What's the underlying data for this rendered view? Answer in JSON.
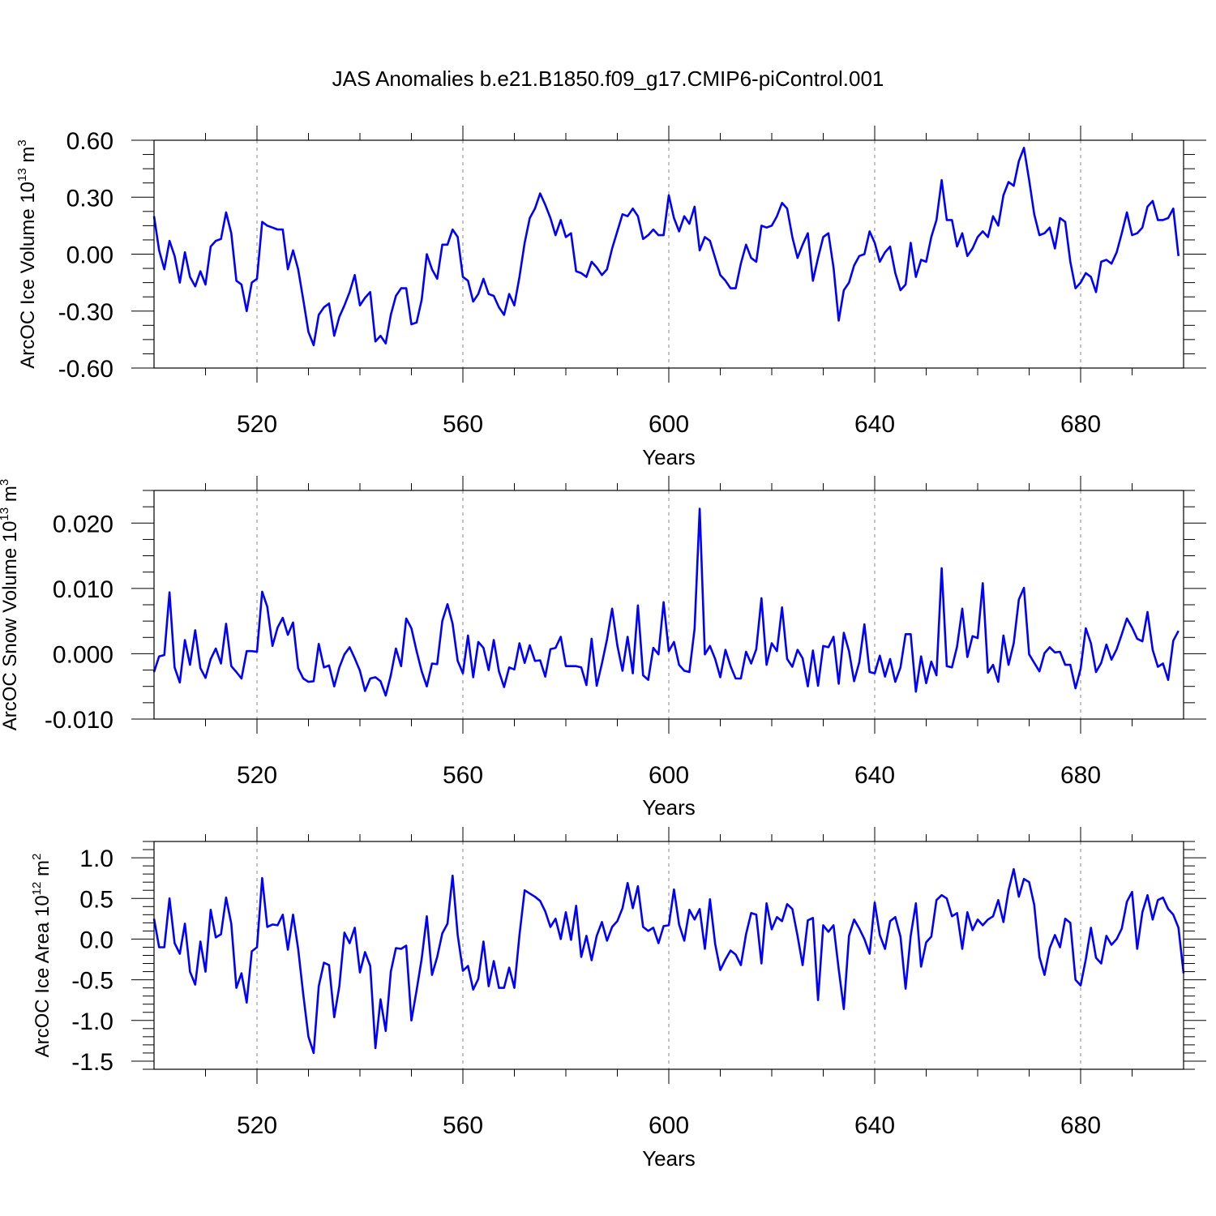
{
  "title": "JAS Anomalies b.e21.B1850.f09_g17.CMIP6-piControl.001",
  "colors": {
    "line": "#0000ff",
    "axes": "#000000",
    "grid": "#888888"
  },
  "chart_data": [
    {
      "type": "line",
      "name": "ice-volume",
      "title": "JAS Anomalies b.e21.B1850.f09_g17.CMIP6-piControl.001",
      "xlabel": "Years",
      "ylabel": {
        "main": "ArcOC Ice Volume 10",
        "exp": "13",
        "unit": " m",
        "unit_exp": "3"
      },
      "xlim": [
        500,
        700
      ],
      "ylim": [
        -0.6,
        0.6
      ],
      "xticks": [
        520,
        560,
        600,
        640,
        680
      ],
      "xtick_labels": [
        "520",
        "560",
        "600",
        "640",
        "680"
      ],
      "yticks": [
        -0.6,
        -0.3,
        0.0,
        0.3,
        0.6
      ],
      "ytick_labels": [
        "-0.60",
        "-0.30",
        "0.00",
        "0.30",
        "0.60"
      ],
      "y_minor_step": 0.075,
      "x_start": 500,
      "x_step": 1,
      "values": [
        0.2,
        0.02,
        -0.08,
        0.07,
        -0.01,
        -0.15,
        0.01,
        -0.12,
        -0.17,
        -0.09,
        -0.16,
        0.04,
        0.07,
        0.08,
        0.22,
        0.11,
        -0.14,
        -0.16,
        -0.3,
        -0.15,
        -0.13,
        0.17,
        0.15,
        0.14,
        0.13,
        0.13,
        -0.08,
        0.02,
        -0.08,
        -0.24,
        -0.41,
        -0.48,
        -0.32,
        -0.28,
        -0.26,
        -0.43,
        -0.33,
        -0.27,
        -0.2,
        -0.11,
        -0.27,
        -0.23,
        -0.2,
        -0.46,
        -0.43,
        -0.47,
        -0.32,
        -0.22,
        -0.18,
        -0.18,
        -0.37,
        -0.36,
        -0.24,
        0.0,
        -0.08,
        -0.13,
        0.05,
        0.05,
        0.13,
        0.09,
        -0.12,
        -0.14,
        -0.25,
        -0.21,
        -0.13,
        -0.21,
        -0.22,
        -0.28,
        -0.32,
        -0.21,
        -0.27,
        -0.12,
        0.06,
        0.19,
        0.24,
        0.32,
        0.26,
        0.19,
        0.1,
        0.18,
        0.09,
        0.11,
        -0.09,
        -0.1,
        -0.12,
        -0.04,
        -0.07,
        -0.11,
        -0.08,
        0.03,
        0.12,
        0.21,
        0.2,
        0.24,
        0.2,
        0.08,
        0.1,
        0.13,
        0.1,
        0.1,
        0.31,
        0.19,
        0.12,
        0.2,
        0.16,
        0.25,
        0.02,
        0.09,
        0.07,
        -0.02,
        -0.11,
        -0.14,
        -0.18,
        -0.18,
        -0.05,
        0.05,
        -0.02,
        -0.04,
        0.15,
        0.14,
        0.15,
        0.2,
        0.27,
        0.24,
        0.09,
        -0.02,
        0.05,
        0.11,
        -0.14,
        -0.02,
        0.09,
        0.11,
        -0.07,
        -0.35,
        -0.19,
        -0.15,
        -0.06,
        -0.01,
        0.0,
        0.12,
        0.06,
        -0.04,
        0.01,
        0.04,
        -0.1,
        -0.19,
        -0.16,
        0.06,
        -0.12,
        -0.03,
        -0.04,
        0.09,
        0.18,
        0.39,
        0.18,
        0.18,
        0.04,
        0.11,
        -0.01,
        0.03,
        0.09,
        0.12,
        0.09,
        0.2,
        0.15,
        0.31,
        0.38,
        0.36,
        0.49,
        0.56,
        0.39,
        0.21,
        0.1,
        0.11,
        0.14,
        0.03,
        0.19,
        0.17,
        -0.04,
        -0.18,
        -0.15,
        -0.1,
        -0.12,
        -0.2,
        -0.04,
        -0.03,
        -0.05,
        0.01,
        0.11,
        0.22,
        0.1,
        0.11,
        0.14,
        0.25,
        0.28,
        0.18,
        0.18,
        0.19,
        0.24,
        -0.01
      ]
    },
    {
      "type": "line",
      "name": "snow-volume",
      "xlabel": "Years",
      "ylabel": {
        "main": "ArcOC Snow Volume 10",
        "exp": "13",
        "unit": " m",
        "unit_exp": "3"
      },
      "xlim": [
        500,
        700
      ],
      "ylim": [
        -0.01,
        0.025
      ],
      "xticks": [
        520,
        560,
        600,
        640,
        680
      ],
      "xtick_labels": [
        "520",
        "560",
        "600",
        "640",
        "680"
      ],
      "yticks": [
        -0.01,
        0.0,
        0.01,
        0.02
      ],
      "ytick_labels": [
        "-0.010",
        "0.000",
        "0.010",
        "0.020"
      ],
      "y_minor_step": 0.0025,
      "x_start": 500,
      "x_step": 1,
      "values": [
        -0.0028,
        -0.0004,
        -0.0002,
        0.0094,
        -0.0021,
        -0.0044,
        0.0021,
        -0.0017,
        0.0036,
        -0.0022,
        -0.0037,
        -0.0008,
        0.0008,
        -0.0015,
        0.0046,
        -0.0019,
        -0.0028,
        -0.0038,
        0.0004,
        0.0004,
        0.0003,
        0.0095,
        0.0072,
        0.0012,
        0.004,
        0.0055,
        0.0029,
        0.0048,
        -0.0022,
        -0.0038,
        -0.0043,
        -0.0042,
        0.0015,
        -0.0021,
        -0.0018,
        -0.005,
        -0.0021,
        -0.0001,
        0.001,
        -0.0007,
        -0.0026,
        -0.0057,
        -0.0038,
        -0.0036,
        -0.0042,
        -0.0064,
        -0.0033,
        0.0008,
        -0.0019,
        0.0054,
        0.0039,
        0.0004,
        -0.0027,
        -0.005,
        -0.0015,
        -0.0016,
        0.005,
        0.0076,
        0.0046,
        -0.0011,
        -0.003,
        0.0028,
        -0.0036,
        0.0018,
        0.0009,
        -0.0025,
        0.0021,
        -0.0027,
        -0.0051,
        -0.0021,
        -0.0024,
        0.0016,
        -0.0014,
        0.0013,
        -0.0011,
        -0.001,
        -0.0035,
        0.0007,
        0.0009,
        0.0026,
        -0.0019,
        -0.0019,
        -0.0019,
        -0.0021,
        -0.0048,
        0.0023,
        -0.0049,
        -0.0015,
        0.0022,
        0.0069,
        0.0013,
        -0.0026,
        0.0026,
        -0.003,
        0.0074,
        -0.0033,
        -0.004,
        0.0009,
        -0.0001,
        0.0079,
        0.0004,
        0.0018,
        -0.0017,
        -0.0026,
        -0.0028,
        0.0038,
        0.0222,
        -0.0001,
        0.0012,
        -0.0008,
        -0.0036,
        0.0006,
        -0.0019,
        -0.0038,
        -0.0038,
        0.0003,
        -0.0015,
        0.0007,
        0.0085,
        -0.0017,
        0.0016,
        0.0004,
        0.0071,
        -0.0008,
        -0.002,
        0.0006,
        -0.0007,
        -0.005,
        0.0005,
        -0.0049,
        0.0012,
        0.001,
        0.0026,
        -0.0046,
        0.0032,
        0.0004,
        -0.0042,
        -0.0013,
        0.0045,
        -0.0028,
        -0.003,
        -0.0003,
        -0.0035,
        -0.0008,
        -0.0043,
        -0.0021,
        0.003,
        0.003,
        -0.0058,
        -0.0004,
        -0.0045,
        -0.0012,
        -0.0033,
        0.0131,
        -0.0019,
        -0.0021,
        0.0011,
        0.0069,
        -0.0005,
        0.0027,
        0.0024,
        0.0108,
        -0.0029,
        -0.0017,
        -0.0043,
        0.0028,
        -0.0017,
        0.0016,
        0.0083,
        0.0101,
        -0.0001,
        -0.0014,
        -0.0027,
        0.0001,
        0.001,
        0.0002,
        0.0003,
        -0.0017,
        -0.0017,
        -0.0053,
        -0.0023,
        0.0039,
        0.0016,
        -0.0028,
        -0.0014,
        0.0014,
        -0.0009,
        0.0007,
        0.003,
        0.0054,
        0.004,
        0.0023,
        0.0019,
        0.0064,
        0.0006,
        -0.002,
        -0.0015,
        -0.004,
        0.002,
        0.0035
      ]
    },
    {
      "type": "line",
      "name": "ice-area",
      "xlabel": "Years",
      "ylabel": {
        "main": "ArcOC Ice Area 10",
        "exp": "12",
        "unit": " m",
        "unit_exp": "2"
      },
      "xlim": [
        500,
        700
      ],
      "ylim": [
        -1.6,
        1.2
      ],
      "xticks": [
        520,
        560,
        600,
        640,
        680
      ],
      "xtick_labels": [
        "520",
        "560",
        "600",
        "640",
        "680"
      ],
      "yticks": [
        -1.5,
        -1.0,
        -0.5,
        0.0,
        0.5,
        1.0
      ],
      "ytick_labels": [
        "-1.5",
        "-1.0",
        "-0.5",
        "0.0",
        "0.5",
        "1.0"
      ],
      "y_minor_step": 0.1,
      "x_start": 500,
      "x_step": 1,
      "values": [
        0.25,
        -0.1,
        -0.1,
        0.5,
        -0.05,
        -0.18,
        0.19,
        -0.4,
        -0.56,
        -0.03,
        -0.4,
        0.36,
        0.02,
        0.06,
        0.51,
        0.19,
        -0.6,
        -0.42,
        -0.78,
        -0.15,
        -0.1,
        0.75,
        0.15,
        0.18,
        0.17,
        0.3,
        -0.13,
        0.3,
        -0.12,
        -0.68,
        -1.2,
        -1.4,
        -0.58,
        -0.29,
        -0.32,
        -0.96,
        -0.58,
        0.08,
        -0.05,
        0.14,
        -0.41,
        -0.16,
        -0.33,
        -1.34,
        -0.74,
        -1.13,
        -0.4,
        -0.11,
        -0.12,
        -0.08,
        -1.0,
        -0.63,
        -0.24,
        0.28,
        -0.44,
        -0.22,
        0.07,
        0.19,
        0.78,
        0.05,
        -0.39,
        -0.33,
        -0.62,
        -0.49,
        -0.03,
        -0.58,
        -0.27,
        -0.6,
        -0.6,
        -0.35,
        -0.6,
        0.05,
        0.6,
        0.56,
        0.52,
        0.47,
        0.34,
        0.15,
        0.25,
        0.0,
        0.33,
        -0.01,
        0.41,
        -0.22,
        0.04,
        -0.26,
        0.04,
        0.21,
        -0.02,
        0.15,
        0.22,
        0.38,
        0.69,
        0.38,
        0.65,
        0.15,
        0.1,
        0.14,
        -0.05,
        0.16,
        0.17,
        0.61,
        0.18,
        -0.02,
        0.36,
        0.24,
        0.37,
        -0.12,
        0.49,
        -0.06,
        -0.38,
        -0.25,
        -0.14,
        -0.19,
        -0.32,
        0.06,
        0.32,
        0.3,
        -0.3,
        0.44,
        0.12,
        0.27,
        0.22,
        0.43,
        0.37,
        0.04,
        -0.32,
        0.23,
        0.26,
        -0.75,
        0.17,
        0.09,
        0.17,
        -0.37,
        -0.86,
        0.04,
        0.24,
        0.13,
        0.0,
        -0.18,
        0.45,
        0.05,
        -0.12,
        0.22,
        0.27,
        0.03,
        -0.61,
        0.04,
        0.44,
        -0.34,
        -0.04,
        0.03,
        0.48,
        0.54,
        0.5,
        0.28,
        0.32,
        -0.12,
        0.33,
        0.11,
        0.24,
        0.17,
        0.24,
        0.28,
        0.48,
        0.21,
        0.6,
        0.86,
        0.52,
        0.74,
        0.7,
        0.42,
        -0.22,
        -0.44,
        -0.11,
        0.05,
        -0.1,
        0.25,
        0.2,
        -0.5,
        -0.57,
        -0.25,
        0.14,
        -0.23,
        -0.3,
        0.04,
        -0.07,
        0.0,
        0.13,
        0.46,
        0.58,
        -0.12,
        0.33,
        0.54,
        0.24,
        0.48,
        0.51,
        0.37,
        0.3,
        0.14,
        -0.42
      ]
    }
  ]
}
